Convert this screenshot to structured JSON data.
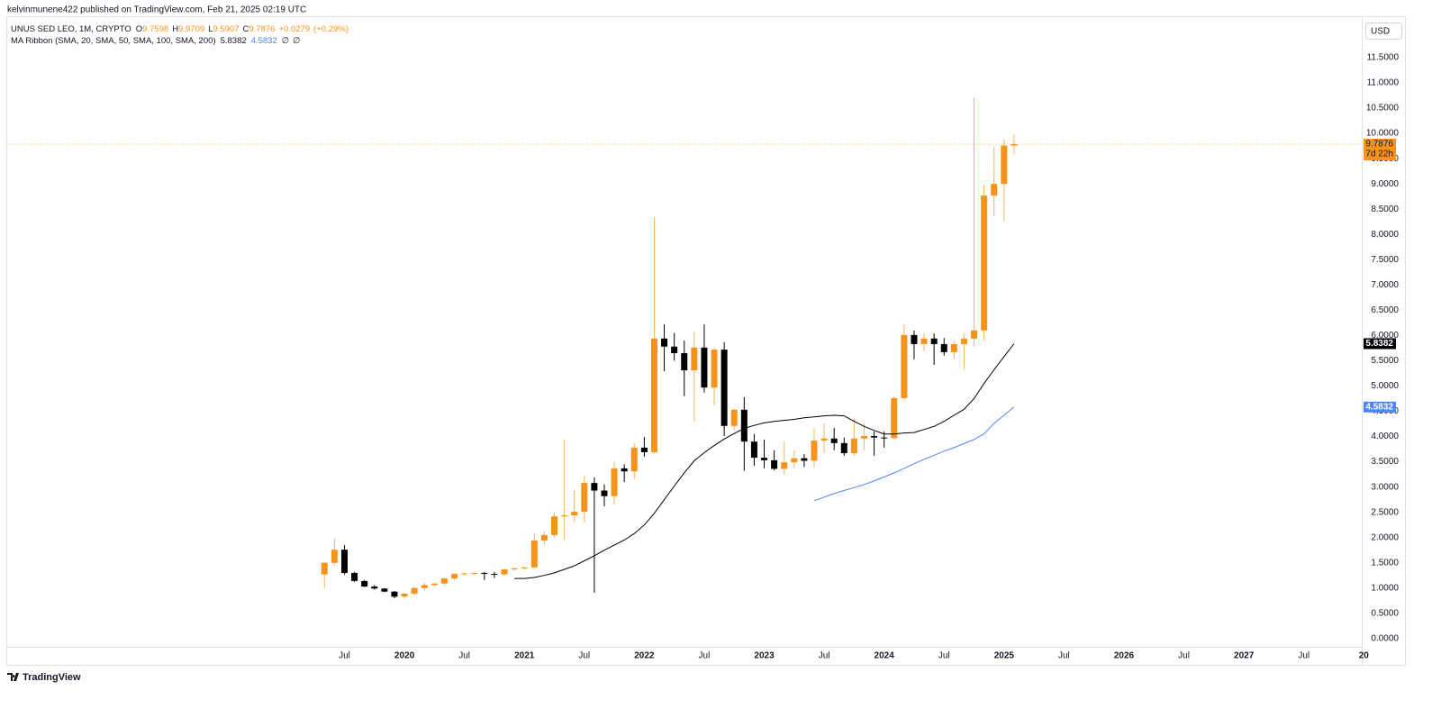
{
  "header": {
    "text": "kelvinmunene422 published on TradingView.com, Feb 21, 2025 02:19 UTC"
  },
  "footer": {
    "brand": "TradingView"
  },
  "chart_data": {
    "type": "candlestick",
    "symbol": "UNUS SED LEO, 1M, CRYPTO",
    "ohlc_labels": [
      "O",
      "H",
      "L",
      "C"
    ],
    "change": {
      "value": 0.0279,
      "label": "+0.0279"
    },
    "change_pct": {
      "value": 0.29,
      "label": "(+0.29%)"
    },
    "indicator": "MA Ribbon (SMA, 20, SMA, 50, SMA, 100, SMA, 200)",
    "indicator_empty": [
      "∅",
      "∅"
    ],
    "currency": "USD",
    "countdown": "7d 22h",
    "up_color": "#f7931a",
    "down_color": "#000000",
    "price_line": true,
    "grid": false,
    "x": [
      "2019-05",
      "2019-06",
      "2019-07",
      "2019-08",
      "2019-09",
      "2019-10",
      "2019-11",
      "2019-12",
      "2020-01",
      "2020-02",
      "2020-03",
      "2020-04",
      "2020-05",
      "2020-06",
      "2020-07",
      "2020-08",
      "2020-09",
      "2020-10",
      "2020-11",
      "2020-12",
      "2021-01",
      "2021-02",
      "2021-03",
      "2021-04",
      "2021-05",
      "2021-06",
      "2021-07",
      "2021-08",
      "2021-09",
      "2021-10",
      "2021-11",
      "2021-12",
      "2022-01",
      "2022-02",
      "2022-03",
      "2022-04",
      "2022-05",
      "2022-06",
      "2022-07",
      "2022-08",
      "2022-09",
      "2022-10",
      "2022-11",
      "2022-12",
      "2023-01",
      "2023-02",
      "2023-03",
      "2023-04",
      "2023-05",
      "2023-06",
      "2023-07",
      "2023-08",
      "2023-09",
      "2023-10",
      "2023-11",
      "2023-12",
      "2024-01",
      "2024-02",
      "2024-03",
      "2024-04",
      "2024-05",
      "2024-06",
      "2024-07",
      "2024-08",
      "2024-09",
      "2024-10",
      "2024-11",
      "2024-12",
      "2025-01",
      "2025-02"
    ],
    "open": [
      1.27,
      1.5,
      1.76,
      1.3,
      1.14,
      1.03,
      0.99,
      0.93,
      0.83,
      0.89,
      1.0,
      1.06,
      1.09,
      1.19,
      1.28,
      1.29,
      1.3,
      1.28,
      1.27,
      1.37,
      1.39,
      1.41,
      1.94,
      2.05,
      2.42,
      2.44,
      2.51,
      3.08,
      2.93,
      2.82,
      3.37,
      3.31,
      3.78,
      3.69,
      5.94,
      5.78,
      5.65,
      5.31,
      5.76,
      4.97,
      5.72,
      4.21,
      4.53,
      3.9,
      3.58,
      3.53,
      3.36,
      3.49,
      3.57,
      3.52,
      3.92,
      3.96,
      3.87,
      3.67,
      3.96,
      4.01,
      3.98,
      3.97,
      4.76,
      6.01,
      5.83,
      5.94,
      5.83,
      5.67,
      5.83,
      5.94,
      6.1,
      8.77,
      9.0,
      9.7598
    ],
    "high": [
      1.52,
      1.98,
      1.85,
      1.32,
      1.16,
      1.06,
      1.0,
      0.94,
      0.9,
      1.03,
      1.1,
      1.1,
      1.2,
      1.3,
      1.31,
      1.31,
      1.32,
      1.32,
      1.38,
      1.4,
      1.42,
      2.09,
      2.12,
      2.5,
      3.94,
      2.94,
      3.23,
      3.19,
      3.05,
      3.49,
      3.45,
      3.87,
      3.99,
      8.33,
      6.22,
      6.05,
      5.9,
      6.08,
      6.22,
      5.75,
      5.87,
      4.55,
      4.78,
      4.05,
      3.94,
      3.73,
      3.9,
      3.73,
      3.65,
      4.17,
      4.26,
      4.17,
      3.98,
      4.35,
      4.26,
      4.1,
      4.1,
      4.8,
      6.22,
      6.1,
      6.04,
      6.04,
      5.95,
      5.9,
      6.04,
      10.71,
      8.99,
      9.73,
      9.88,
      9.9709
    ],
    "low": [
      1.0,
      1.45,
      1.27,
      1.12,
      1.02,
      0.97,
      0.92,
      0.8,
      0.8,
      0.85,
      0.95,
      1.03,
      1.05,
      1.15,
      1.24,
      1.25,
      1.16,
      1.2,
      1.25,
      1.34,
      1.36,
      1.38,
      1.85,
      2.0,
      1.94,
      2.3,
      2.3,
      0.91,
      2.62,
      2.65,
      3.1,
      3.16,
      3.6,
      3.65,
      5.29,
      5.5,
      4.8,
      4.3,
      4.87,
      4.62,
      4.01,
      4.12,
      3.32,
      3.42,
      3.37,
      3.33,
      3.24,
      3.37,
      3.4,
      3.39,
      3.67,
      3.73,
      3.62,
      3.62,
      3.73,
      3.62,
      3.78,
      3.93,
      4.71,
      5.53,
      5.69,
      5.42,
      5.6,
      5.54,
      5.33,
      5.78,
      5.9,
      8.36,
      8.27,
      9.5907
    ],
    "close": [
      1.5,
      1.76,
      1.3,
      1.14,
      1.03,
      0.99,
      0.93,
      0.83,
      0.89,
      1.0,
      1.06,
      1.09,
      1.19,
      1.28,
      1.29,
      1.3,
      1.28,
      1.27,
      1.37,
      1.39,
      1.41,
      1.94,
      2.05,
      2.42,
      2.44,
      2.51,
      3.08,
      2.93,
      2.82,
      3.37,
      3.31,
      3.78,
      3.69,
      5.94,
      5.78,
      5.65,
      5.31,
      5.76,
      4.97,
      5.72,
      4.21,
      4.53,
      3.9,
      3.58,
      3.53,
      3.36,
      3.49,
      3.57,
      3.52,
      3.92,
      3.96,
      3.87,
      3.67,
      3.96,
      4.01,
      3.98,
      3.97,
      4.76,
      6.01,
      5.83,
      5.94,
      5.83,
      5.67,
      5.83,
      5.94,
      6.1,
      8.77,
      9.0,
      9.7598,
      9.7876
    ],
    "series": [
      {
        "color": "#000000",
        "values": [
          null,
          null,
          null,
          null,
          null,
          null,
          null,
          null,
          null,
          null,
          null,
          null,
          null,
          null,
          null,
          null,
          null,
          null,
          null,
          1.19,
          1.19,
          1.21,
          1.25,
          1.3,
          1.37,
          1.44,
          1.54,
          1.64,
          1.75,
          1.85,
          1.95,
          2.08,
          2.25,
          2.48,
          2.75,
          3.02,
          3.28,
          3.52,
          3.68,
          3.82,
          3.95,
          4.06,
          4.16,
          4.22,
          4.27,
          4.3,
          4.32,
          4.34,
          4.37,
          4.39,
          4.41,
          4.42,
          4.41,
          4.3,
          4.2,
          4.12,
          4.05,
          4.05,
          4.07,
          4.08,
          4.14,
          4.2,
          4.3,
          4.42,
          4.54,
          4.75,
          5.05,
          5.32,
          5.58,
          5.8382
        ]
      },
      {
        "color": "#4f86f7",
        "values": [
          null,
          null,
          null,
          null,
          null,
          null,
          null,
          null,
          null,
          null,
          null,
          null,
          null,
          null,
          null,
          null,
          null,
          null,
          null,
          null,
          null,
          null,
          null,
          null,
          null,
          null,
          null,
          null,
          null,
          null,
          null,
          null,
          null,
          null,
          null,
          null,
          null,
          null,
          null,
          null,
          null,
          null,
          null,
          null,
          null,
          null,
          null,
          null,
          null,
          2.73,
          2.8,
          2.87,
          2.93,
          2.99,
          3.05,
          3.12,
          3.2,
          3.28,
          3.37,
          3.46,
          3.55,
          3.63,
          3.71,
          3.78,
          3.86,
          3.94,
          4.05,
          4.26,
          4.42,
          4.5832
        ]
      }
    ],
    "xlim": [
      "2016-09",
      "2027-12"
    ],
    "xticks": [
      {
        "value": "2019-07",
        "label": "Jul"
      },
      {
        "value": "2020-01",
        "label": "2020"
      },
      {
        "value": "2020-07",
        "label": "Jul"
      },
      {
        "value": "2021-01",
        "label": "2021"
      },
      {
        "value": "2021-07",
        "label": "Jul"
      },
      {
        "value": "2022-01",
        "label": "2022"
      },
      {
        "value": "2022-07",
        "label": "Jul"
      },
      {
        "value": "2023-01",
        "label": "2023"
      },
      {
        "value": "2023-07",
        "label": "Jul"
      },
      {
        "value": "2024-01",
        "label": "2024"
      },
      {
        "value": "2024-07",
        "label": "Jul"
      },
      {
        "value": "2025-01",
        "label": "2025"
      },
      {
        "value": "2025-07",
        "label": "Jul"
      },
      {
        "value": "2026-01",
        "label": "2026"
      },
      {
        "value": "2026-07",
        "label": "Jul"
      },
      {
        "value": "2027-01",
        "label": "2027"
      },
      {
        "value": "2027-07",
        "label": "Jul"
      },
      {
        "value": "2028-01",
        "label": "20"
      }
    ],
    "ylim": [
      -0.52,
      12.32
    ],
    "yticks": [
      {
        "value": 0,
        "label": "0.0000"
      },
      {
        "value": 0.5,
        "label": "0.5000"
      },
      {
        "value": 1,
        "label": "1.0000"
      },
      {
        "value": 1.5,
        "label": "1.5000"
      },
      {
        "value": 2,
        "label": "2.0000"
      },
      {
        "value": 2.5,
        "label": "2.5000"
      },
      {
        "value": 3,
        "label": "3.0000"
      },
      {
        "value": 3.5,
        "label": "3.5000"
      },
      {
        "value": 4,
        "label": "4.0000"
      },
      {
        "value": 4.5,
        "label": "4.5000"
      },
      {
        "value": 5,
        "label": "5.0000"
      },
      {
        "value": 5.5,
        "label": "5.5000"
      },
      {
        "value": 6,
        "label": "6.0000"
      },
      {
        "value": 6.5,
        "label": "6.5000"
      },
      {
        "value": 7,
        "label": "7.0000"
      },
      {
        "value": 7.5,
        "label": "7.5000"
      },
      {
        "value": 8,
        "label": "8.0000"
      },
      {
        "value": 8.5,
        "label": "8.5000"
      },
      {
        "value": 9,
        "label": "9.0000"
      },
      {
        "value": 9.5,
        "label": "9.5000"
      },
      {
        "value": 10,
        "label": "10.0000"
      },
      {
        "value": 10.5,
        "label": "10.5000"
      },
      {
        "value": 11,
        "label": "11.0000"
      },
      {
        "value": 11.5,
        "label": "11.5000"
      }
    ]
  }
}
